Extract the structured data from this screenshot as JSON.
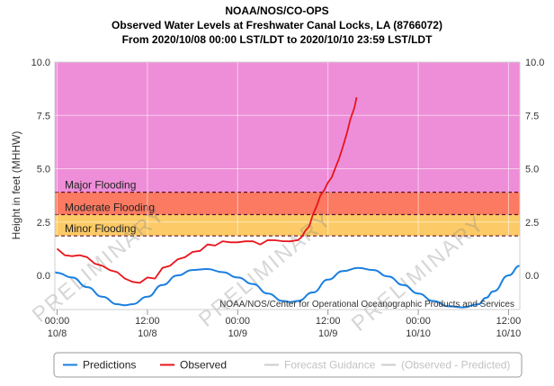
{
  "header": {
    "line1": "NOAA/NOS/CO-OPS",
    "line2": "Observed Water Levels at Freshwater Canal Locks, LA (8766072)",
    "line3": "From 2020/10/08 00:00 LST/LDT to 2020/10/10 23:59 LST/LDT"
  },
  "watermark_text": "PRELIMINARY",
  "credit": "NOAA/NOS/Center for Operational Oceanographic Products and Services",
  "chart_data": {
    "type": "line",
    "xlabel": "",
    "ylabel": "Height in feet (MHHW)",
    "x_unit": "hours since 10/8 00:00",
    "xlim": [
      -0.3,
      61.5
    ],
    "ylim": [
      -1.6,
      10.0
    ],
    "y_ticks": [
      0.0,
      2.5,
      5.0,
      7.5,
      10.0
    ],
    "y_tick_labels": [
      "0.0",
      "2.5",
      "5.0",
      "7.5",
      "10.0"
    ],
    "x_ticks": [
      {
        "hour": 0,
        "time": "00:00",
        "date": "10/8"
      },
      {
        "hour": 12,
        "time": "12:00",
        "date": "10/8"
      },
      {
        "hour": 24,
        "time": "00:00",
        "date": "10/9"
      },
      {
        "hour": 36,
        "time": "12:00",
        "date": "10/9"
      },
      {
        "hour": 48,
        "time": "00:00",
        "date": "10/10"
      },
      {
        "hour": 60,
        "time": "12:00",
        "date": "10/10"
      }
    ],
    "flood_bands": [
      {
        "name": "Minor Flooding",
        "from": 1.85,
        "to": 2.85,
        "color": "#fcca66"
      },
      {
        "name": "Moderate Flooding",
        "from": 2.85,
        "to": 3.9,
        "color": "#fb7a61"
      },
      {
        "name": "Major Flooding",
        "from": 3.9,
        "to": 10.0,
        "color": "#ee8ed8"
      }
    ],
    "series": [
      {
        "name": "Predictions",
        "color": "#1a7fe0",
        "x": [
          -0.3,
          0,
          2,
          4,
          6,
          8,
          9,
          10,
          12,
          14,
          16,
          18,
          20,
          22,
          24,
          26,
          28,
          30,
          31,
          32,
          34,
          36,
          38,
          40,
          42,
          44,
          46,
          48,
          50,
          52,
          54,
          56,
          57,
          58,
          60,
          61.5
        ],
        "y": [
          0.15,
          0.12,
          -0.1,
          -0.55,
          -1.0,
          -1.35,
          -1.4,
          -1.35,
          -1.0,
          -0.45,
          0.0,
          0.25,
          0.3,
          0.15,
          -0.1,
          -0.4,
          -0.85,
          -1.2,
          -1.25,
          -1.2,
          -0.8,
          -0.2,
          0.2,
          0.35,
          0.25,
          -0.05,
          -0.45,
          -0.85,
          -1.2,
          -1.45,
          -1.5,
          -1.35,
          -1.05,
          -0.75,
          0.0,
          0.45
        ]
      },
      {
        "name": "Observed",
        "color": "#e8141b",
        "x": [
          0,
          1,
          2,
          3,
          4,
          5,
          6,
          7,
          8,
          9,
          10,
          11,
          12,
          13,
          14,
          15,
          16,
          17,
          18,
          19,
          20,
          21,
          22,
          23,
          24,
          25,
          26,
          27,
          28,
          29,
          30,
          31,
          32,
          32.5,
          33,
          33.5,
          34,
          34.5,
          35,
          35.5,
          36,
          36.5,
          37,
          37.5,
          38,
          38.5,
          39,
          39.5,
          39.8
        ],
        "y": [
          1.25,
          1.0,
          0.85,
          1.0,
          0.8,
          0.6,
          0.4,
          0.3,
          0.1,
          -0.1,
          -0.35,
          -0.3,
          -0.15,
          -0.1,
          0.3,
          0.5,
          0.7,
          0.9,
          1.05,
          1.2,
          1.4,
          1.45,
          1.55,
          1.6,
          1.5,
          1.65,
          1.55,
          1.5,
          1.6,
          1.7,
          1.55,
          1.65,
          1.6,
          1.85,
          2.05,
          2.35,
          2.8,
          3.3,
          3.7,
          4.05,
          4.3,
          4.65,
          5.0,
          5.55,
          6.0,
          6.7,
          7.3,
          7.9,
          8.3
        ]
      }
    ],
    "legend": {
      "placement": "bottom",
      "entries": [
        {
          "label": "Predictions",
          "color": "#1a7fe0"
        },
        {
          "label": "Observed",
          "color": "#e8141b"
        },
        {
          "label": "Forecast Guidance",
          "color": "#cccccc"
        },
        {
          "label": "(Observed - Predicted)",
          "color": "#cccccc"
        }
      ]
    },
    "grid": true
  }
}
